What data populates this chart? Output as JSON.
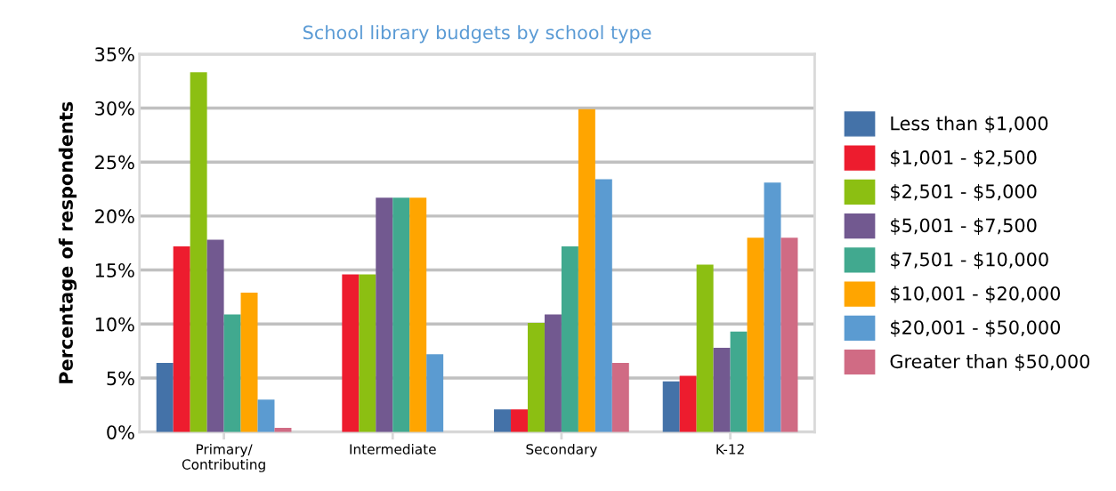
{
  "chart_data": {
    "type": "bar",
    "title": "School library budgets by school type",
    "ylabel": "Percentage of respondents",
    "categories": [
      "Primary/\nContributing",
      "Intermediate",
      "Secondary",
      "K-12"
    ],
    "series": [
      {
        "name": "Less than $1,000",
        "color": "#4472a8",
        "values": [
          6.4,
          0,
          2.1,
          4.7
        ]
      },
      {
        "name": "$1,001 - $2,500",
        "color": "#ed1c2e",
        "values": [
          17.2,
          14.6,
          2.1,
          5.2
        ]
      },
      {
        "name": "$2,501 - $5,000",
        "color": "#8cbf12",
        "values": [
          33.3,
          14.6,
          10.1,
          15.5
        ]
      },
      {
        "name": "$5,001 - $7,500",
        "color": "#725990",
        "values": [
          17.8,
          21.7,
          10.9,
          7.8
        ]
      },
      {
        "name": "$7,501 - $10,000",
        "color": "#41a98f",
        "values": [
          10.9,
          21.7,
          17.2,
          9.3
        ]
      },
      {
        "name": "$10,001 - $20,000",
        "color": "#ffa500",
        "values": [
          12.9,
          21.7,
          29.9,
          18.0
        ]
      },
      {
        "name": "$20,001 - $50,000",
        "color": "#5b9bd1",
        "values": [
          3.0,
          7.2,
          23.4,
          23.1
        ]
      },
      {
        "name": "Greater than $50,000",
        "color": "#d06b84",
        "values": [
          0.4,
          0,
          6.4,
          18.0
        ]
      }
    ],
    "ylim": [
      0,
      35
    ],
    "yticks": [
      {
        "value": 0,
        "label": "0%"
      },
      {
        "value": 5,
        "label": "5%"
      },
      {
        "value": 10,
        "label": "10%"
      },
      {
        "value": 15,
        "label": "15%"
      },
      {
        "value": 20,
        "label": "20%"
      },
      {
        "value": 25,
        "label": "25%"
      },
      {
        "value": 30,
        "label": "30%"
      },
      {
        "value": 35,
        "label": "35%"
      }
    ],
    "grid": "y",
    "legend": "right"
  }
}
